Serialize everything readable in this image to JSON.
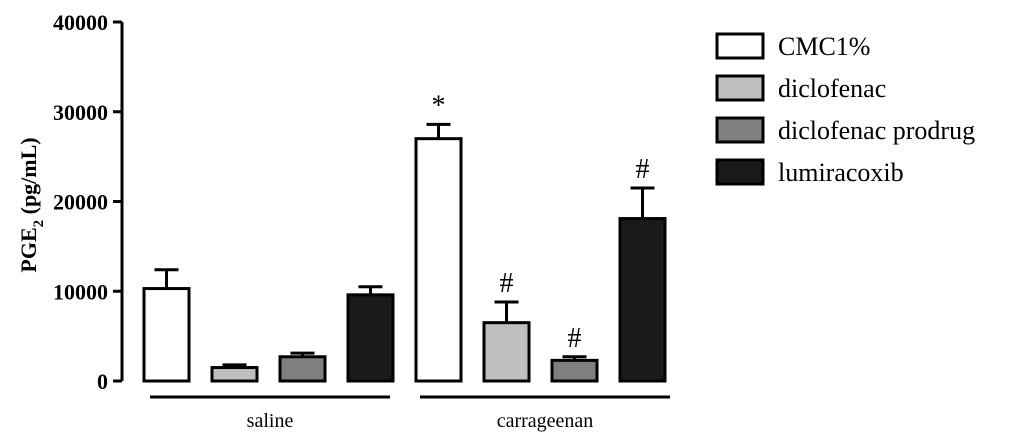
{
  "chart_data": {
    "type": "bar",
    "ylabel": "PGE",
    "ylabel_subscript": "2",
    "ylabel_unit": " (pg/mL)",
    "ylim": [
      0,
      40000
    ],
    "yticks": [
      0,
      10000,
      20000,
      30000,
      40000
    ],
    "ytick_labels": [
      "0",
      "10000",
      "20000",
      "30000",
      "40000"
    ],
    "grid": false,
    "legend_position": "top-right",
    "groups": [
      "saline",
      "carrageenan"
    ],
    "series": [
      {
        "name": "CMC1%",
        "color": "#ffffff",
        "values": [
          10300,
          27000
        ],
        "errors": [
          2100,
          1600
        ],
        "annotations": [
          "",
          "*"
        ]
      },
      {
        "name": "diclofenac",
        "color": "#bfbfbf",
        "values": [
          1500,
          6500
        ],
        "errors": [
          300,
          2300
        ],
        "annotations": [
          "",
          "#"
        ]
      },
      {
        "name": "diclofenac prodrug",
        "color": "#7f7f7f",
        "values": [
          2700,
          2300
        ],
        "errors": [
          400,
          400
        ],
        "annotations": [
          "",
          "#"
        ]
      },
      {
        "name": "lumiracoxib",
        "color": "#1a1a1a",
        "values": [
          9600,
          18100
        ],
        "errors": [
          900,
          3400
        ],
        "annotations": [
          "",
          "#"
        ]
      }
    ]
  }
}
